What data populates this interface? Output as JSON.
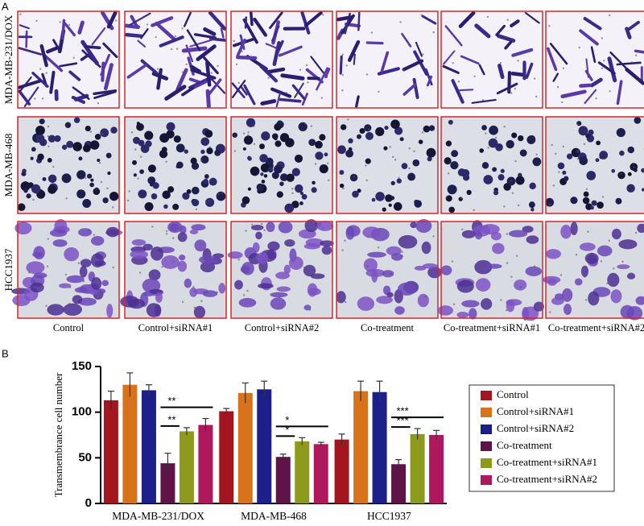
{
  "panel_a": {
    "label": "A",
    "rows": [
      "MDA-MB-231/DOX",
      "MDA-MB-468",
      "HCC1937"
    ],
    "columns": [
      "Control",
      "Control+siRNA#1",
      "Control+siRNA#2",
      "Co-treatment",
      "Co-treatment+siRNA#1",
      "Co-treatment+siRNA#2"
    ]
  },
  "panel_b": {
    "label": "B"
  },
  "chart_data": {
    "type": "bar",
    "y_label": "Transmembrance cell number",
    "categories": [
      "MDA-MB-231/DOX",
      "MDA-MB-468",
      "HCC1937"
    ],
    "series": [
      {
        "name": "Control",
        "color": "#a3151f",
        "values": [
          113,
          101,
          70
        ],
        "errors": [
          10,
          3,
          6
        ]
      },
      {
        "name": "Control+siRNA#1",
        "color": "#d8731b",
        "values": [
          130,
          121,
          123
        ],
        "errors": [
          13,
          11,
          11
        ]
      },
      {
        "name": "Control+siRNA#2",
        "color": "#1c1f8a",
        "values": [
          124,
          125,
          122
        ],
        "errors": [
          6,
          9,
          12
        ]
      },
      {
        "name": "Co-treatment",
        "color": "#5e1349",
        "values": [
          44,
          51,
          43
        ],
        "errors": [
          11,
          3,
          5
        ]
      },
      {
        "name": "Co-treatment+siRNA#1",
        "color": "#8d9a1c",
        "values": [
          79,
          68,
          76
        ],
        "errors": [
          4,
          4,
          6
        ]
      },
      {
        "name": "Co-treatment+siRNA#2",
        "color": "#b0185d",
        "values": [
          86,
          65,
          75
        ],
        "errors": [
          7,
          2,
          5
        ]
      }
    ],
    "annotations": [
      {
        "text": "**",
        "group": 0,
        "from": 3,
        "to": 5
      },
      {
        "text": "**",
        "group": 0,
        "from": 3,
        "to": 4
      },
      {
        "text": "*",
        "group": 1,
        "from": 3,
        "to": 5
      },
      {
        "text": "*",
        "group": 1,
        "from": 3,
        "to": 4
      },
      {
        "text": "***",
        "group": 2,
        "from": 3,
        "to": 5
      },
      {
        "text": "***",
        "group": 2,
        "from": 3,
        "to": 4
      }
    ],
    "ylim": [
      0,
      150
    ],
    "yticks": [
      0,
      50,
      100,
      150
    ],
    "grid": false,
    "legend": "right"
  }
}
